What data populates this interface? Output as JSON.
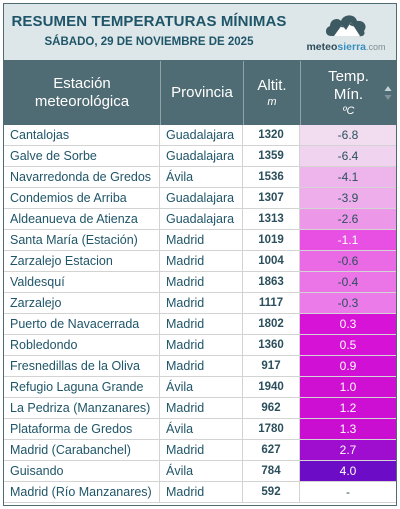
{
  "header": {
    "title": "RESUMEN TEMPERATURAS MÍNIMAS",
    "subtitle": "SÁBADO, 29 DE NOVIEMBRE DE 2025",
    "logo_main": "meteo",
    "logo_accent": "sierra",
    "logo_domain": ".com"
  },
  "columns": {
    "station": [
      "Estación",
      "meteorológica"
    ],
    "province": "Provincia",
    "altitude": "Altit.",
    "altitude_unit": "m",
    "temp": [
      "Temp.",
      "Mín."
    ],
    "temp_unit": "ºC"
  },
  "rows": [
    {
      "station": "Cantalojas",
      "province": "Guadalajara",
      "altitude": "1320",
      "temp": "-6.8",
      "bg": "#f1dcf0",
      "fg": "#2b4f5c"
    },
    {
      "station": "Galve de Sorbe",
      "province": "Guadalajara",
      "altitude": "1359",
      "temp": "-6.4",
      "bg": "#f0d4ef",
      "fg": "#2b4f5c"
    },
    {
      "station": "Navarredonda de Gredos",
      "province": "Ávila",
      "altitude": "1536",
      "temp": "-4.1",
      "bg": "#eeb5ec",
      "fg": "#2b4f5c"
    },
    {
      "station": "Condemios de Arriba",
      "province": "Guadalajara",
      "altitude": "1307",
      "temp": "-3.9",
      "bg": "#eeaeeb",
      "fg": "#2b4f5c"
    },
    {
      "station": "Aldeanueva de Atienza",
      "province": "Guadalajara",
      "altitude": "1313",
      "temp": "-2.6",
      "bg": "#ec97e8",
      "fg": "#2b4f5c"
    },
    {
      "station": "Santa María (Estación)",
      "province": "Madrid",
      "altitude": "1019",
      "temp": "-1.1",
      "bg": "#e84fe3",
      "fg": "#ffffff"
    },
    {
      "station": "Zarzalejo Estacion",
      "province": "Madrid",
      "altitude": "1004",
      "temp": "-0.6",
      "bg": "#ea6ae6",
      "fg": "#2b4f5c"
    },
    {
      "station": "Valdesquí",
      "province": "Madrid",
      "altitude": "1863",
      "temp": "-0.4",
      "bg": "#eb75e7",
      "fg": "#2b4f5c"
    },
    {
      "station": "Zarzalejo",
      "province": "Madrid",
      "altitude": "1117",
      "temp": "-0.3",
      "bg": "#eb7be8",
      "fg": "#2b4f5c"
    },
    {
      "station": "Puerto de Navacerrada",
      "province": "Madrid",
      "altitude": "1802",
      "temp": "0.3",
      "bg": "#d713d7",
      "fg": "#ffffff"
    },
    {
      "station": "Robledondo",
      "province": "Madrid",
      "altitude": "1360",
      "temp": "0.5",
      "bg": "#d512d6",
      "fg": "#ffffff"
    },
    {
      "station": "Fresnedillas de la Oliva",
      "province": "Madrid",
      "altitude": "917",
      "temp": "0.9",
      "bg": "#d010d4",
      "fg": "#ffffff"
    },
    {
      "station": "Refugio Laguna Grande",
      "province": "Ávila",
      "altitude": "1940",
      "temp": "1.0",
      "bg": "#cf10d3",
      "fg": "#ffffff"
    },
    {
      "station": "La Pedriza (Manzanares)",
      "province": "Madrid",
      "altitude": "962",
      "temp": "1.2",
      "bg": "#cc0fd2",
      "fg": "#ffffff"
    },
    {
      "station": "Plataforma de Gredos",
      "province": "Ávila",
      "altitude": "1780",
      "temp": "1.3",
      "bg": "#ca0ed1",
      "fg": "#ffffff"
    },
    {
      "station": "Madrid (Carabanchel)",
      "province": "Madrid",
      "altitude": "627",
      "temp": "2.7",
      "bg": "#9f0dcf",
      "fg": "#ffffff"
    },
    {
      "station": "Guisando",
      "province": "Ávila",
      "altitude": "784",
      "temp": "4.0",
      "bg": "#6d0cc6",
      "fg": "#ffffff"
    },
    {
      "station": "Madrid (Río Manzanares)",
      "province": "Madrid",
      "altitude": "592",
      "temp": "-",
      "bg": "#ffffff",
      "fg": "#2b4f5c"
    }
  ],
  "icons": {
    "logo": "cloud-mountain-icon",
    "sort": "sort-arrows-icon"
  },
  "colors": {
    "header_bg": "#dde6e8",
    "title": "#1f5568",
    "thead_bg": "#4f6b73"
  }
}
